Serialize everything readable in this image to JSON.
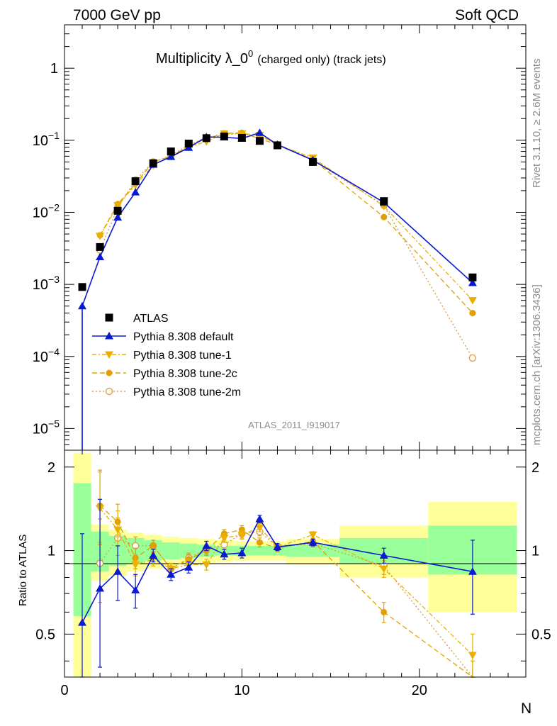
{
  "header": {
    "left": "7000 GeV pp",
    "right": "Soft QCD"
  },
  "side_texts": {
    "rivet": "Rivet 3.1.10, ≥ 2.6M events",
    "mcplots": "mcplots.cern.ch [arXiv:1306.3436]"
  },
  "watermark": "ATLAS_2011_I919017",
  "chart_data": {
    "type": "line",
    "title": {
      "main": "Multiplicity λ_0",
      "sup": "0",
      "suffix": "(charged only) (track jets)"
    },
    "xlabel": "N",
    "ylabel_ratio": "Ratio to ATLAS",
    "xlim": [
      0,
      26
    ],
    "ylim_main": [
      5e-06,
      4
    ],
    "ylim_ratio": [
      0.35,
      2.3
    ],
    "yscale_main": "log",
    "yscale_ratio": "log",
    "x_ticks": [
      0,
      10,
      20
    ],
    "main_ytick_labels": [
      {
        "v": 1,
        "b": "1",
        "e": ""
      },
      {
        "v": 0.1,
        "b": "10",
        "e": "−1"
      },
      {
        "v": 0.01,
        "b": "10",
        "e": "−2"
      },
      {
        "v": 0.001,
        "b": "10",
        "e": "−3"
      },
      {
        "v": 0.0001,
        "b": "10",
        "e": "−4"
      },
      {
        "v": 1e-05,
        "b": "10",
        "e": "−5"
      }
    ],
    "ratio_ytick_labels": [
      {
        "v": 2,
        "t": "2"
      },
      {
        "v": 1,
        "t": "1"
      },
      {
        "v": 0.5,
        "t": "0.5"
      }
    ],
    "legend_placement": "lower-left",
    "data_points": {
      "name": "ATLAS",
      "color": "#000000",
      "x": [
        1,
        2,
        3,
        4,
        5,
        6,
        7,
        8,
        9,
        10,
        11,
        12,
        14,
        18,
        23
      ],
      "y": [
        0.00092,
        0.0033,
        0.0105,
        0.027,
        0.048,
        0.07,
        0.09,
        0.107,
        0.113,
        0.108,
        0.098,
        0.085,
        0.05,
        0.0143,
        0.00125
      ]
    },
    "bands": [
      {
        "x0": 0.5,
        "x1": 1.5,
        "stat": [
          0.58,
          1.75
        ],
        "tot": [
          0.3,
          2.25
        ]
      },
      {
        "x0": 1.5,
        "x1": 2.5,
        "stat": [
          0.84,
          1.17
        ],
        "tot": [
          0.78,
          1.24
        ]
      },
      {
        "x0": 2.5,
        "x1": 3.5,
        "stat": [
          0.88,
          1.13
        ],
        "tot": [
          0.81,
          1.19
        ]
      },
      {
        "x0": 3.5,
        "x1": 4.5,
        "stat": [
          0.9,
          1.11
        ],
        "tot": [
          0.84,
          1.16
        ]
      },
      {
        "x0": 4.5,
        "x1": 5.5,
        "stat": [
          0.92,
          1.09
        ],
        "tot": [
          0.86,
          1.14
        ]
      },
      {
        "x0": 5.5,
        "x1": 6.5,
        "stat": [
          0.93,
          1.07
        ],
        "tot": [
          0.88,
          1.12
        ]
      },
      {
        "x0": 6.5,
        "x1": 7.5,
        "stat": [
          0.94,
          1.06
        ],
        "tot": [
          0.89,
          1.11
        ]
      },
      {
        "x0": 7.5,
        "x1": 8.5,
        "stat": [
          0.95,
          1.05
        ],
        "tot": [
          0.9,
          1.1
        ]
      },
      {
        "x0": 8.5,
        "x1": 9.5,
        "stat": [
          0.96,
          1.04
        ],
        "tot": [
          0.91,
          1.09
        ]
      },
      {
        "x0": 9.5,
        "x1": 10.5,
        "stat": [
          0.96,
          1.04
        ],
        "tot": [
          0.92,
          1.08
        ]
      },
      {
        "x0": 10.5,
        "x1": 11.5,
        "stat": [
          0.96,
          1.04
        ],
        "tot": [
          0.92,
          1.08
        ]
      },
      {
        "x0": 11.5,
        "x1": 12.5,
        "stat": [
          0.96,
          1.04
        ],
        "tot": [
          0.92,
          1.08
        ]
      },
      {
        "x0": 12.5,
        "x1": 15.5,
        "stat": [
          0.95,
          1.05
        ],
        "tot": [
          0.89,
          1.1
        ]
      },
      {
        "x0": 15.5,
        "x1": 20.5,
        "stat": [
          0.9,
          1.11
        ],
        "tot": [
          0.8,
          1.23
        ]
      },
      {
        "x0": 20.5,
        "x1": 25.5,
        "stat": [
          0.82,
          1.23
        ],
        "tot": [
          0.6,
          1.5
        ]
      }
    ],
    "series": [
      {
        "name": "Pythia 8.308 default",
        "color": "#0a1ad0",
        "dash": "",
        "marker": "triangle-up",
        "x": [
          1,
          2,
          3,
          4,
          5,
          6,
          7,
          8,
          9,
          10,
          11,
          12,
          14,
          18,
          23
        ],
        "y": [
          0.0005,
          0.0024,
          0.0085,
          0.019,
          0.046,
          0.059,
          0.079,
          0.111,
          0.11,
          0.106,
          0.127,
          0.087,
          0.053,
          0.0137,
          0.00105
        ],
        "ratio": [
          0.55,
          0.73,
          0.84,
          0.72,
          0.96,
          0.82,
          0.87,
          1.04,
          0.97,
          0.98,
          1.3,
          1.03,
          1.07,
          0.96,
          0.84
        ],
        "err_lo": [
          0.2,
          0.35,
          0.18,
          0.1,
          0.05,
          0.04,
          0.04,
          0.04,
          0.04,
          0.04,
          0.04,
          0.03,
          0.03,
          0.06,
          0.25
        ],
        "err_hi": [
          0.6,
          0.8,
          0.2,
          0.1,
          0.05,
          0.04,
          0.04,
          0.04,
          0.04,
          0.04,
          0.04,
          0.03,
          0.03,
          0.06,
          0.25
        ]
      },
      {
        "name": "Pythia 8.308 tune-1",
        "color": "#e8b000",
        "dash": "6,3,2,3",
        "marker": "triangle-down",
        "x": [
          1,
          2,
          3,
          4,
          5,
          6,
          7,
          8,
          9,
          10,
          11,
          12,
          14,
          18,
          23
        ],
        "y": [
          null,
          0.0047,
          0.0125,
          0.024,
          0.045,
          0.06,
          0.08,
          0.096,
          0.124,
          0.124,
          0.118,
          0.087,
          0.057,
          0.0122,
          0.0006
        ],
        "ratio": [
          null,
          1.42,
          1.19,
          0.89,
          0.93,
          0.86,
          0.89,
          0.89,
          1.11,
          1.14,
          1.21,
          1.03,
          1.14,
          0.86,
          0.42
        ],
        "err_lo": [
          null,
          0.35,
          0.15,
          0.08,
          0.05,
          0.04,
          0.04,
          0.04,
          0.04,
          0.04,
          0.04,
          0.03,
          0.03,
          0.06,
          0.08
        ],
        "err_hi": [
          null,
          0.5,
          0.2,
          0.08,
          0.05,
          0.04,
          0.04,
          0.04,
          0.04,
          0.04,
          0.04,
          0.03,
          0.03,
          0.06,
          0.08
        ]
      },
      {
        "name": "Pythia 8.308 tune-2c",
        "color": "#e0a000",
        "dash": "7,4",
        "marker": "circle",
        "x": [
          1,
          2,
          3,
          4,
          5,
          6,
          7,
          8,
          9,
          10,
          11,
          12,
          14,
          18,
          23
        ],
        "y": [
          null,
          0.0048,
          0.013,
          0.025,
          0.05,
          0.06,
          0.083,
          0.105,
          0.125,
          0.127,
          0.105,
          0.087,
          0.054,
          0.0086,
          0.0004
        ],
        "ratio": [
          null,
          1.45,
          1.27,
          0.94,
          1.04,
          0.86,
          0.93,
          1.0,
          1.15,
          1.19,
          1.07,
          1.02,
          1.08,
          0.6,
          0.3
        ],
        "err_lo": [
          null,
          0.4,
          0.15,
          0.08,
          0.05,
          0.04,
          0.04,
          0.04,
          0.04,
          0.04,
          0.04,
          0.03,
          0.03,
          0.05,
          0.1
        ],
        "err_hi": [
          null,
          0.5,
          0.2,
          0.08,
          0.05,
          0.04,
          0.04,
          0.04,
          0.04,
          0.04,
          0.04,
          0.03,
          0.03,
          0.05,
          0.1
        ]
      },
      {
        "name": "Pythia 8.308 tune-2m",
        "color": "#dc9a3c",
        "dash": "2,3",
        "marker": "circle-open",
        "x": [
          1,
          2,
          3,
          4,
          5,
          6,
          7,
          8,
          9,
          10,
          11,
          12,
          14,
          18,
          23
        ],
        "y": [
          null,
          0.003,
          0.0115,
          0.028,
          0.05,
          0.061,
          0.087,
          0.108,
          0.118,
          0.125,
          0.115,
          0.087,
          0.053,
          0.0125,
          9.5e-05
        ],
        "ratio": [
          null,
          0.9,
          1.11,
          1.04,
          1.04,
          0.86,
          0.94,
          1.01,
          1.05,
          1.15,
          1.17,
          1.03,
          1.06,
          0.88,
          0.08
        ],
        "err_lo": [
          null,
          0.25,
          0.15,
          0.08,
          0.05,
          0.04,
          0.04,
          0.04,
          0.04,
          0.04,
          0.04,
          0.03,
          0.03,
          0.06,
          0.1
        ],
        "err_hi": [
          null,
          0.4,
          0.2,
          0.08,
          0.05,
          0.04,
          0.04,
          0.04,
          0.04,
          0.04,
          0.04,
          0.03,
          0.03,
          0.06,
          0.1
        ]
      }
    ]
  }
}
